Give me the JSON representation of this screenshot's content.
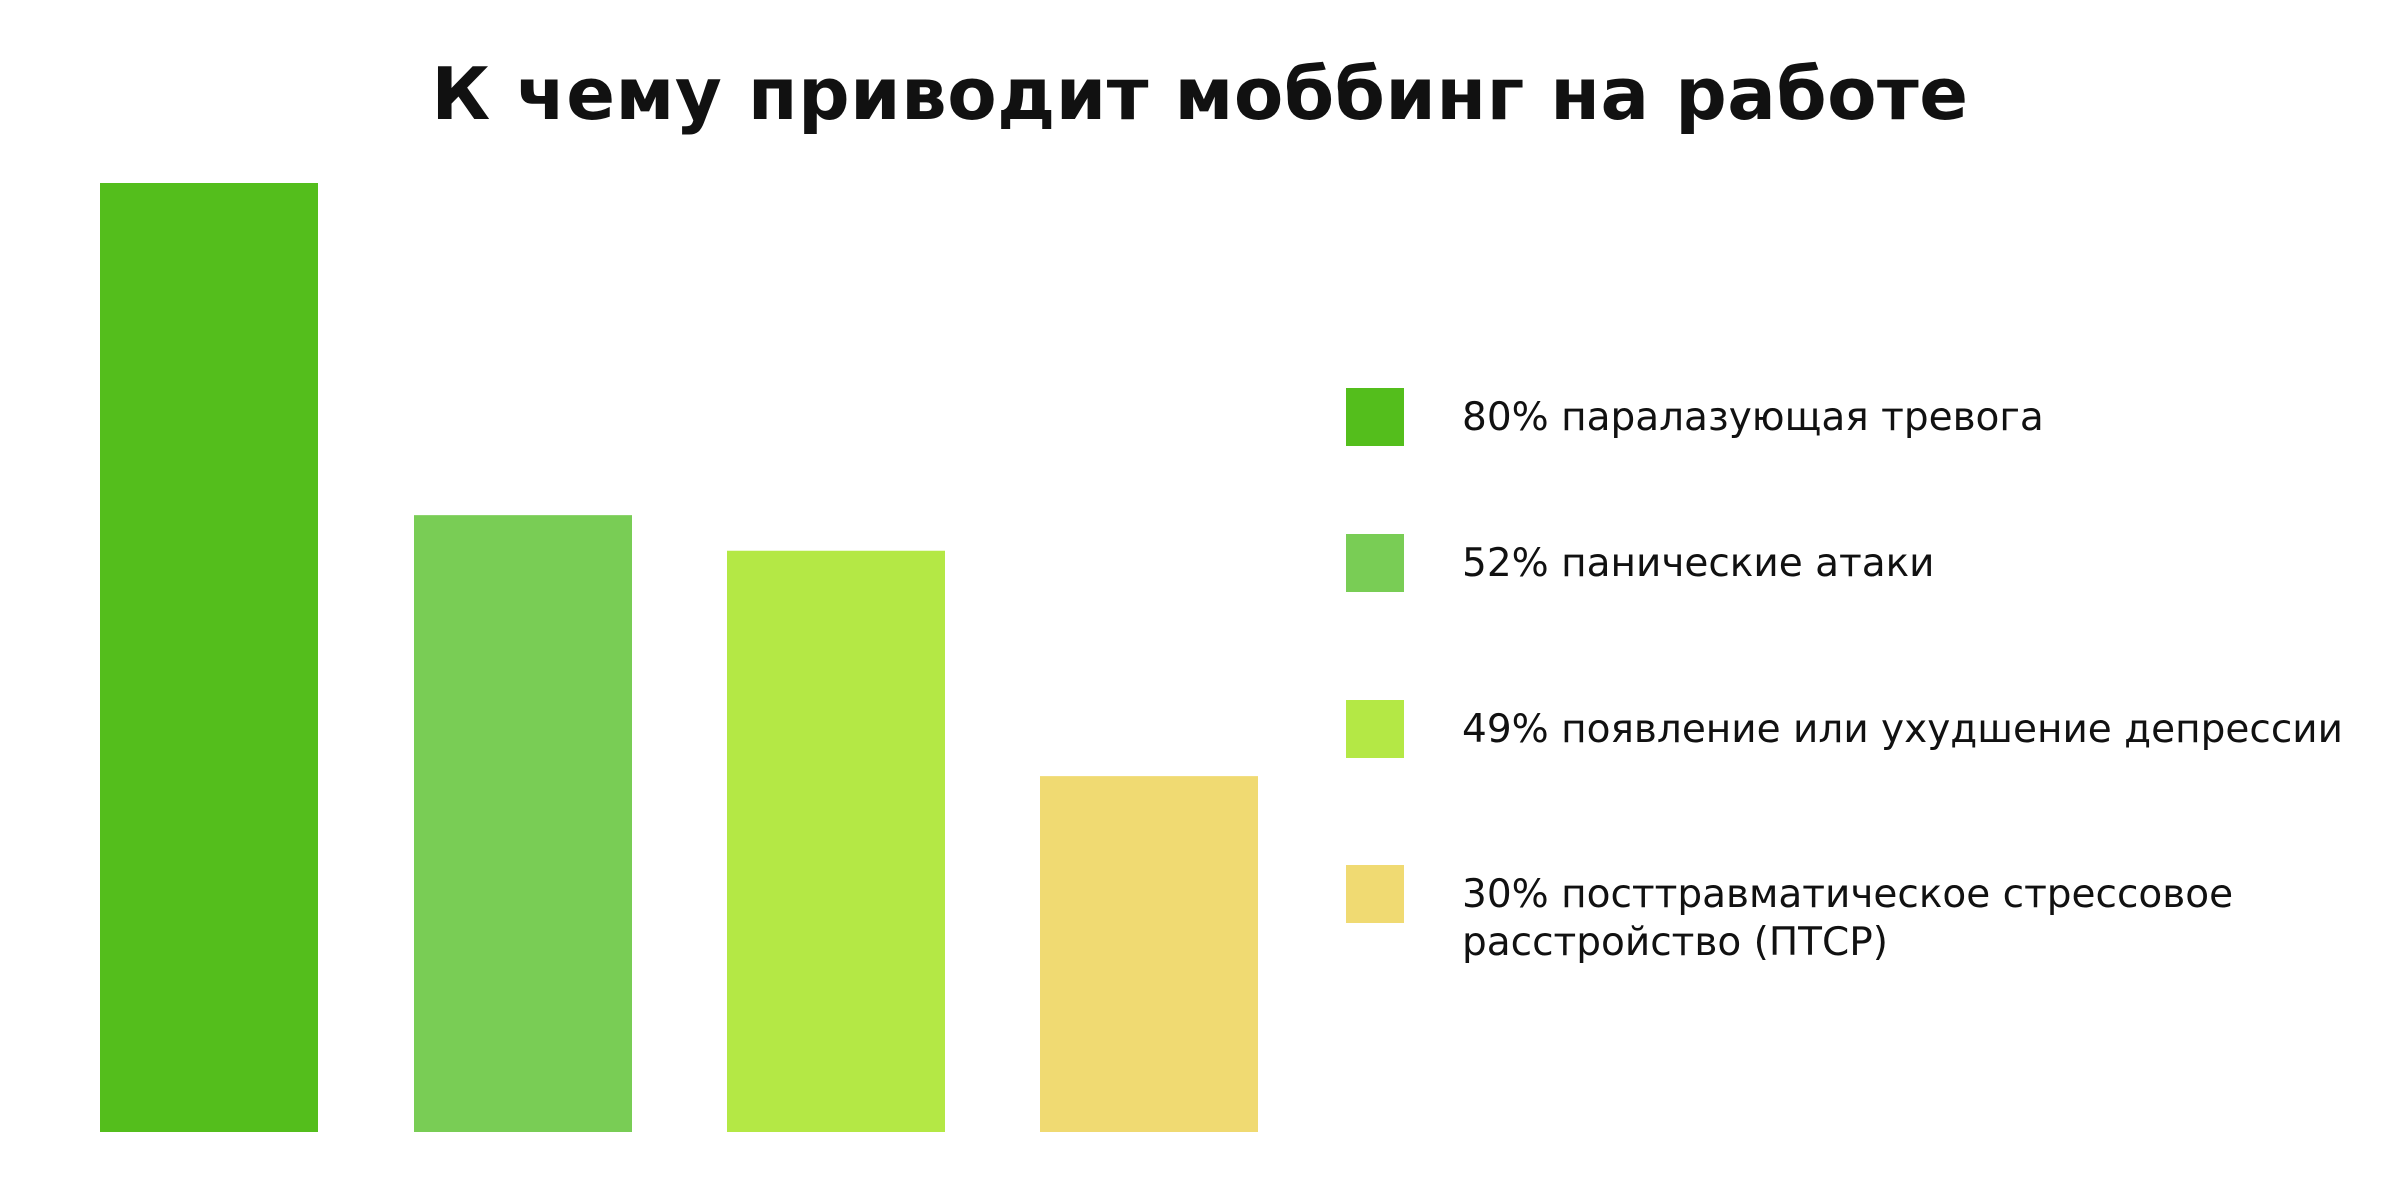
{
  "chart_data": {
    "type": "bar",
    "title": "К чему приводит моббинг на работе",
    "xlabel": "",
    "ylabel": "",
    "ylim": [
      0,
      80
    ],
    "grid": false,
    "legend_placement": "right",
    "unit": "%",
    "categories": [
      "80% паралазующая тревога",
      "52% панические атаки",
      "49% появление или ухудшение депрессии",
      "30% посттравматическое стрессовое\nрасстройство (ПТСР)"
    ],
    "values": [
      80,
      52,
      49,
      30
    ],
    "colors": [
      "#54be1c",
      "#79cd55",
      "#b4e845",
      "#f0da72"
    ]
  }
}
